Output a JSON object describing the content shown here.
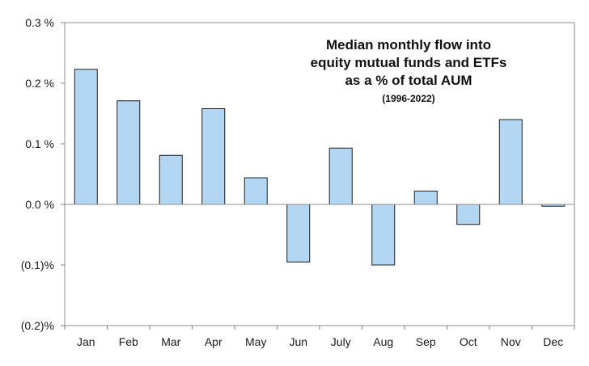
{
  "chart_data": {
    "type": "bar",
    "title_lines": [
      "Median monthly flow into",
      "equity mutual funds and ETFs",
      "as a % of total AUM"
    ],
    "subtitle": "(1996-2022)",
    "categories": [
      "Jan",
      "Feb",
      "Mar",
      "Apr",
      "May",
      "Jun",
      "July",
      "Aug",
      "Sep",
      "Oct",
      "Nov",
      "Dec"
    ],
    "values": [
      0.223,
      0.171,
      0.081,
      0.158,
      0.044,
      -0.095,
      0.093,
      -0.1,
      0.022,
      -0.033,
      0.14,
      -0.003
    ],
    "ylim": [
      -0.2,
      0.3
    ],
    "yticks": [
      0.3,
      0.2,
      0.1,
      0.0,
      -0.1,
      -0.2
    ],
    "ytick_labels": [
      "0.3 %",
      "0.2 %",
      "0.1 %",
      "0.0 %",
      "(0.1)%",
      "(0.2)%"
    ],
    "grid": false,
    "legend": "none",
    "colors": {
      "bar_fill": "#b3d6f2",
      "bar_stroke": "#1f1f1f",
      "axis": "#7f7f7f"
    }
  }
}
